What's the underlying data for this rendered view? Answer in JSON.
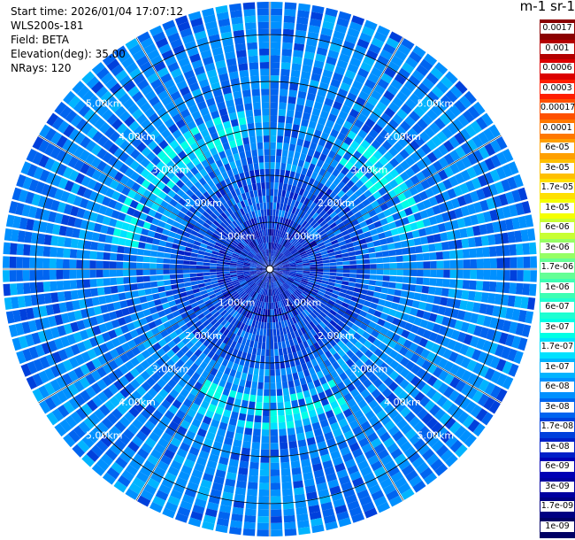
{
  "info": {
    "start_time": "Start time: 2026/01/04 17:07:12",
    "instrument": "WLS200s-181",
    "field": "Field: BETA",
    "elevation": "Elevation(deg): 35.00",
    "nrays": "NRays: 120"
  },
  "colorbar": {
    "title": "m-1 sr-1",
    "ticks": [
      "0.0017",
      "0.001",
      "0.0006",
      "0.0003",
      "0.00017",
      "0.0001",
      "6e-05",
      "3e-05",
      "1.7e-05",
      "1e-05",
      "6e-06",
      "3e-06",
      "1.7e-06",
      "1e-06",
      "6e-07",
      "3e-07",
      "1.7e-07",
      "1e-07",
      "6e-08",
      "3e-08",
      "1.7e-08",
      "1e-08",
      "6e-09",
      "3e-09",
      "1.7e-09",
      "1e-09"
    ],
    "colors": [
      "#8b0000",
      "#b40000",
      "#dc0000",
      "#ff1e00",
      "#ff5000",
      "#ff7800",
      "#ffa000",
      "#ffc000",
      "#ffe000",
      "#f5ff00",
      "#c8ff32",
      "#96ff64",
      "#64ff96",
      "#3cffb4",
      "#1effd2",
      "#00ffe6",
      "#00e1ff",
      "#00b4ff",
      "#0090ff",
      "#0064f0",
      "#0040dc",
      "#0020c8",
      "#0000b4",
      "#0000a0",
      "#000082",
      "#000064"
    ]
  },
  "chart_data": {
    "type": "heatmap",
    "title": "",
    "description_fields": [
      "WLS200s-181",
      "BETA",
      "35.00",
      "120"
    ],
    "range_rings_km": [
      1.0,
      2.0,
      3.0,
      4.0,
      5.0
    ],
    "range_labels": [
      "1.00km",
      "2.00km",
      "3.00km",
      "4.00km",
      "5.00km"
    ],
    "max_range_km": 5.7,
    "nrays": 120,
    "units": "m-1 sr-1",
    "dominant_values": {
      "background": "3e-08",
      "near_center": "1e-08",
      "ring_band_2_5km": "1.7e-07"
    }
  }
}
